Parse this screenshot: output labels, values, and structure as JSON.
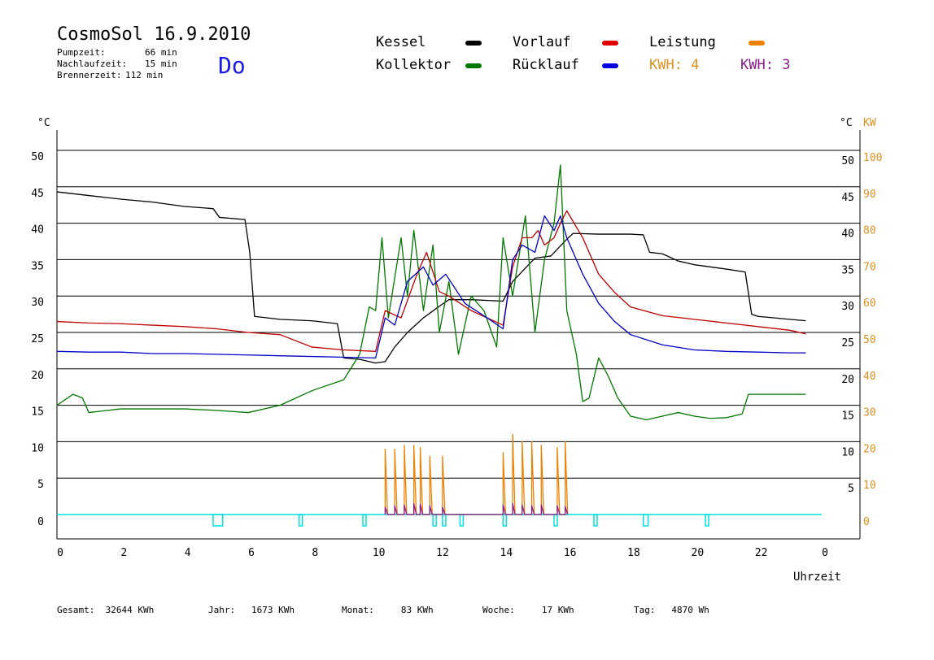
{
  "header": {
    "title": "CosmoSol 16.9.2010",
    "pumpzeit_label": "Pumpzeit:",
    "pumpzeit_value": "66 min",
    "nachlauf_label": "Nachlaufzeit:",
    "nachlauf_value": "15 min",
    "brenner_label": "Brennerzeit:",
    "brenner_value": "112 min",
    "day": "Do"
  },
  "legend": {
    "kessel": "Kessel",
    "kollektor": "Kollektor",
    "vorlauf": "Vorlauf",
    "ruecklauf": "Rücklauf",
    "leistung": "Leistung",
    "kwh1_label": "KWH:",
    "kwh1_value": "4",
    "kwh2_label": "KWH:",
    "kwh2_value": "3"
  },
  "footer": {
    "gesamt_label": "Gesamt:",
    "gesamt_value": "32644 KWh",
    "jahr_label": "Jahr:",
    "jahr_value": "1673 KWh",
    "monat_label": "Monat:",
    "monat_value": "83 KWh",
    "woche_label": "Woche:",
    "woche_value": "17 KWh",
    "tag_label": "Tag:",
    "tag_value": "4870 Wh"
  },
  "colors": {
    "kessel": "#000000",
    "kollektor": "#007800",
    "vorlauf": "#c00000",
    "ruecklauf": "#0000c8",
    "leistung": "#f08000",
    "kwh2": "#8a1a8a",
    "pump": "#00e0e0",
    "day": "#1a1ae6",
    "orange_text": "#e09020"
  },
  "chart_data": {
    "type": "line",
    "xlabel": "Uhrzeit",
    "ylabel_left": "°C",
    "ylabel_right_1": "°C",
    "ylabel_right_2": "KW",
    "xlim": [
      0,
      24
    ],
    "ylim": [
      0,
      50
    ],
    "ylim_right_kw": [
      0,
      100
    ],
    "x_ticks": [
      "0",
      "2",
      "4",
      "6",
      "8",
      "10",
      "12",
      "14",
      "16",
      "18",
      "20",
      "22",
      "0"
    ],
    "y_ticks_left": [
      "50",
      "45",
      "40",
      "35",
      "30",
      "25",
      "20",
      "15",
      "10",
      "5",
      "0"
    ],
    "y_ticks_right": [
      "50",
      "45",
      "40",
      "35",
      "30",
      "25",
      "20",
      "15",
      "10",
      "5"
    ],
    "y_ticks_right_kw": [
      "100",
      "90",
      "80",
      "70",
      "60",
      "50",
      "40",
      "30",
      "20",
      "10",
      "0"
    ],
    "series": [
      {
        "name": "Kessel",
        "color": "#000000",
        "x": [
          0,
          1,
          2,
          3,
          4,
          4.9,
          5.1,
          5.9,
          6.05,
          6.2,
          7,
          8,
          8.8,
          9,
          9.5,
          10,
          10.3,
          10.6,
          11,
          11.5,
          12,
          12.3,
          13,
          14,
          14.3,
          15,
          15.5,
          16,
          16.2,
          17,
          18,
          18.4,
          18.6,
          19,
          19.5,
          20,
          21,
          21.6,
          21.8,
          22,
          23,
          23.5
        ],
        "y": [
          44.3,
          43.8,
          43.3,
          42.9,
          42.3,
          42,
          40.8,
          40.5,
          36,
          27.2,
          26.8,
          26.6,
          26.2,
          21.5,
          21.3,
          20.8,
          21,
          23,
          25,
          27,
          28.6,
          29.5,
          29.5,
          29.3,
          32,
          35.2,
          35.5,
          37.8,
          38.6,
          38.5,
          38.5,
          38.4,
          36,
          35.8,
          34.8,
          34.3,
          33.7,
          33.3,
          27.5,
          27.2,
          26.8,
          26.6
        ]
      },
      {
        "name": "Kollektor",
        "color": "#007800",
        "x": [
          0,
          0.5,
          0.8,
          1,
          2,
          3,
          4,
          5,
          6,
          7,
          8,
          9,
          9.5,
          9.8,
          10,
          10.2,
          10.4,
          10.8,
          11,
          11.2,
          11.5,
          11.8,
          12,
          12.3,
          12.6,
          13,
          13.4,
          13.8,
          14,
          14.3,
          14.7,
          15,
          15.3,
          15.6,
          15.8,
          16,
          16.3,
          16.5,
          16.7,
          17,
          17.3,
          17.6,
          18,
          18.5,
          19,
          19.5,
          20,
          20.5,
          21,
          21.5,
          21.7,
          22,
          22.5,
          23,
          23.5
        ],
        "y": [
          15,
          16.5,
          16,
          14,
          14.5,
          14.5,
          14.5,
          14.3,
          14,
          15,
          17,
          18.5,
          22,
          28.5,
          28,
          38,
          27,
          38,
          30,
          39,
          28,
          37,
          25,
          32,
          22,
          30,
          28,
          23,
          38,
          30,
          41,
          25,
          35,
          40,
          48,
          28,
          22,
          15.5,
          16,
          21.5,
          19,
          16,
          13.5,
          13,
          13.5,
          14,
          13.5,
          13.2,
          13.3,
          13.8,
          16.5,
          16.5,
          16.5,
          16.5,
          16.5
        ]
      },
      {
        "name": "Vorlauf",
        "color": "#c00000",
        "x": [
          0,
          1,
          2,
          3,
          4,
          5,
          6,
          7,
          8,
          9,
          10,
          10.3,
          10.8,
          11.3,
          11.6,
          12,
          12.3,
          13,
          14,
          14.3,
          14.6,
          14.9,
          15.1,
          15.3,
          15.6,
          15.8,
          16,
          16.5,
          17,
          17.5,
          18,
          19,
          20,
          21,
          22,
          23,
          23.5
        ],
        "y": [
          26.5,
          26.3,
          26.2,
          26,
          25.8,
          25.5,
          25,
          24.7,
          23,
          22.6,
          22.4,
          28,
          27,
          33,
          36,
          30.6,
          30,
          28,
          26,
          34,
          38,
          38,
          39,
          37,
          38,
          40,
          41.7,
          38,
          33,
          30.5,
          28.5,
          27.3,
          26.8,
          26.3,
          25.8,
          25.3,
          24.8
        ]
      },
      {
        "name": "Rücklauf",
        "color": "#0000c8",
        "x": [
          0,
          1,
          2,
          3,
          4,
          5,
          6,
          7,
          8,
          9,
          10,
          10.3,
          10.6,
          11,
          11.5,
          11.8,
          12.2,
          12.8,
          13.5,
          14,
          14.3,
          14.6,
          15,
          15.3,
          15.6,
          15.8,
          16,
          16.5,
          17,
          17.5,
          18,
          19,
          20,
          21,
          22,
          23,
          23.5
        ],
        "y": [
          22.4,
          22.3,
          22.3,
          22.1,
          22.1,
          22,
          21.9,
          21.8,
          21.7,
          21.6,
          21.5,
          27,
          26,
          32,
          34,
          31.5,
          33,
          29,
          27,
          25.5,
          35,
          37,
          36,
          41,
          39,
          41,
          38,
          33,
          29,
          26.5,
          24.7,
          23.3,
          22.6,
          22.4,
          22.3,
          22.2,
          22.2
        ]
      },
      {
        "name": "Leistung",
        "color": "#f08000",
        "x": [
          10.3,
          10.6,
          10.9,
          11.2,
          11.4,
          11.7,
          12.1,
          14,
          14.3,
          14.6,
          14.9,
          15.2,
          15.7,
          15.95
        ],
        "y": [
          9,
          9,
          9.5,
          9.5,
          9.2,
          8,
          8,
          8.5,
          11,
          10,
          10,
          9.5,
          9.2,
          10
        ]
      },
      {
        "name": "KWH",
        "color": "#8a1a8a",
        "x": [
          10.3,
          10.6,
          10.9,
          11.2,
          11.4,
          11.7,
          12.1,
          14,
          14.3,
          14.6,
          14.9,
          15.2,
          15.7,
          15.95
        ],
        "y": [
          1,
          1.2,
          1.3,
          1.5,
          1.4,
          1.2,
          1,
          1.3,
          1.5,
          1.3,
          1.2,
          1.3,
          1.2,
          1.1
        ]
      }
    ],
    "pump_pulses": [
      [
        4.9,
        5.2
      ],
      [
        7.6,
        7.7
      ],
      [
        9.6,
        9.7
      ],
      [
        11.8,
        11.85
      ],
      [
        12.1,
        12.2
      ],
      [
        12.65,
        12.75
      ],
      [
        14,
        14.05
      ],
      [
        15.6,
        15.65
      ],
      [
        16.85,
        16.9
      ],
      [
        18.4,
        18.55
      ],
      [
        20.35,
        20.4
      ]
    ],
    "grid": true
  }
}
